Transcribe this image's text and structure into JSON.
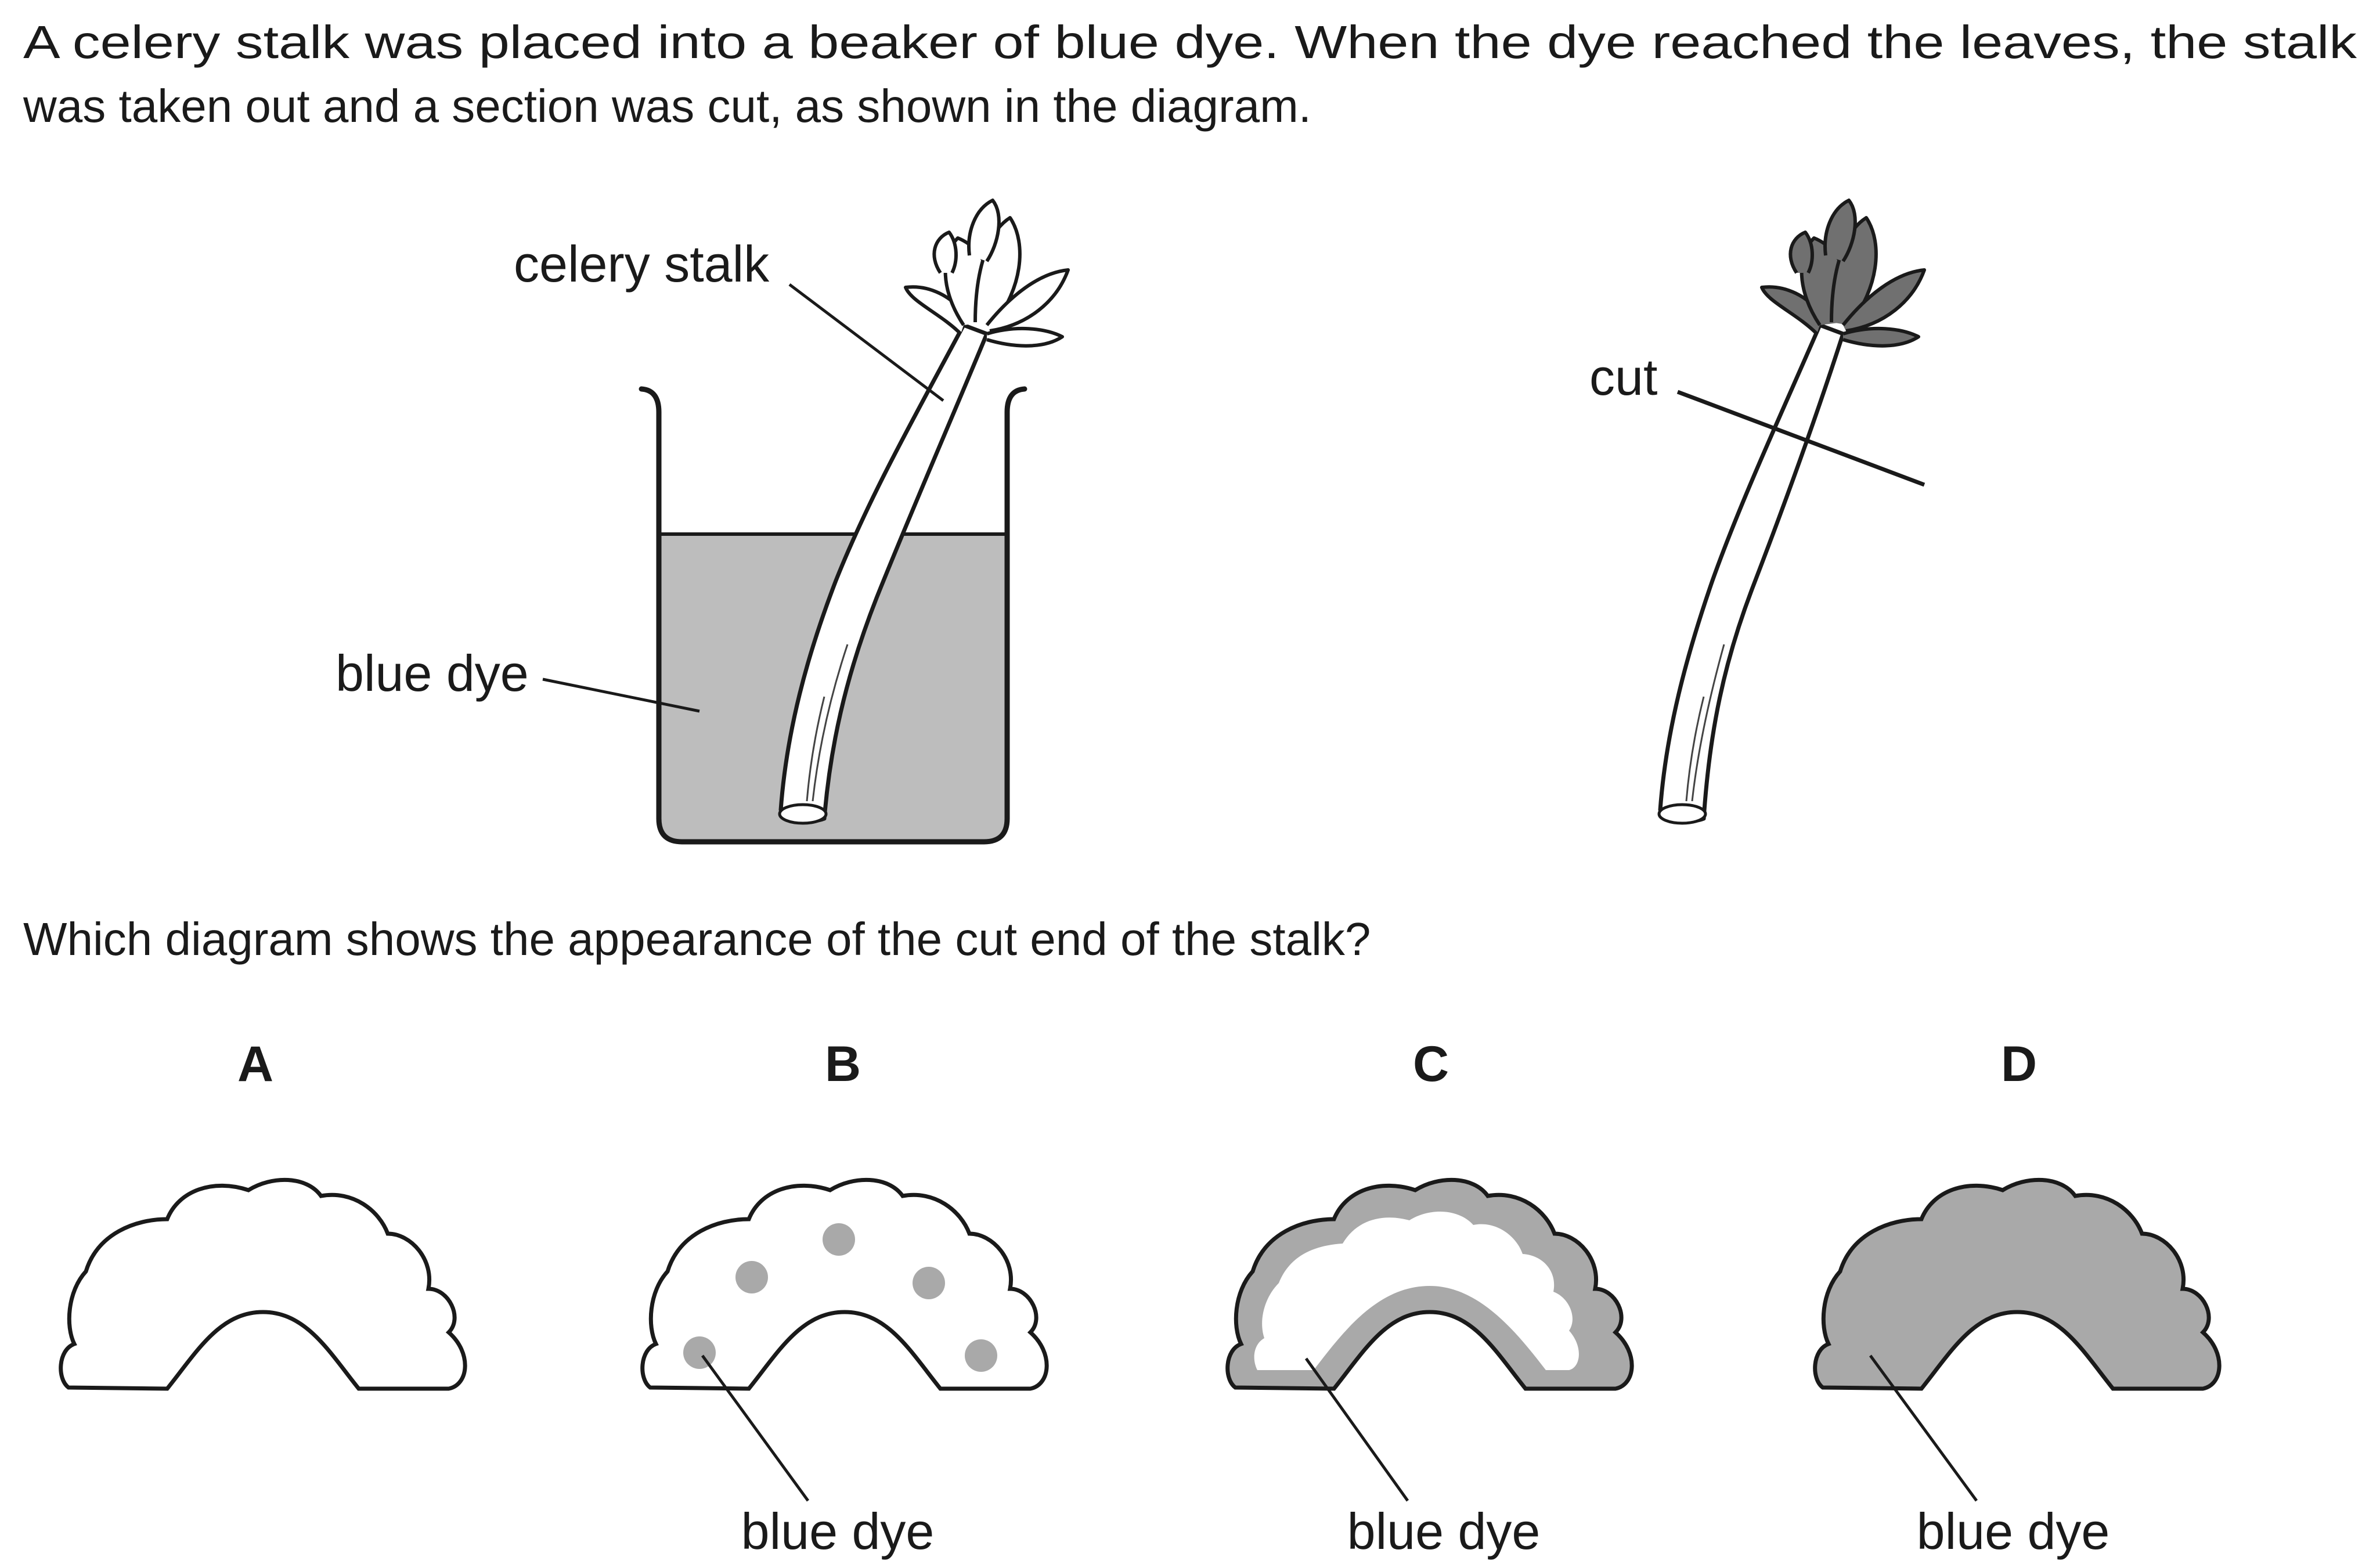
{
  "question": {
    "line1": "A celery stalk was placed into a beaker of blue dye. When the dye reached the leaves, the stalk",
    "line2": "was taken out and a section was cut, as shown in the diagram.",
    "prompt": "Which diagram shows the appearance of the cut end of the stalk?"
  },
  "labels": {
    "celery_stalk": "celery stalk",
    "blue_dye": "blue dye",
    "cut": "cut"
  },
  "options": [
    {
      "letter": "A",
      "caption": ""
    },
    {
      "letter": "B",
      "caption": "blue dye"
    },
    {
      "letter": "C",
      "caption": "blue dye"
    },
    {
      "letter": "D",
      "caption": "blue dye"
    }
  ],
  "colors": {
    "dye": "#bdbdbd",
    "dye_section": "#a9a9a9",
    "dark_leaf": "#707070",
    "outline": "#1a1a1a"
  }
}
